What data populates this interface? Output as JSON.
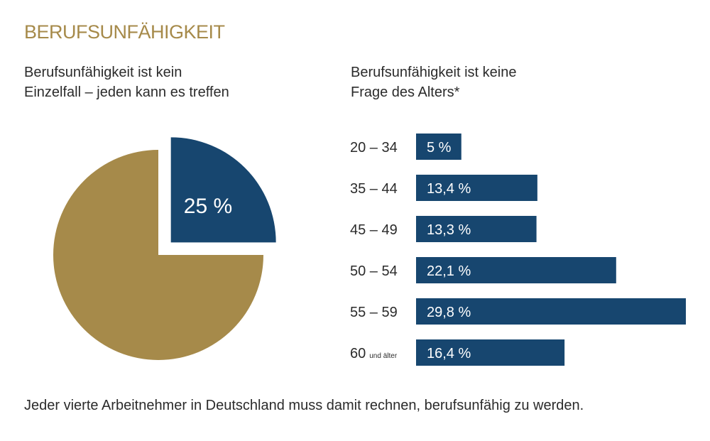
{
  "colors": {
    "gold": "#a68a4a",
    "navy": "#17466f",
    "text": "#2b2b2b"
  },
  "header": {
    "title": "BERUFSUNFÄHIGKEIT"
  },
  "footer": {
    "text": "Jeder vierte Arbeitnehmer in Deutschland muss damit rechnen, berufsunfähig zu werden."
  },
  "chart_data": [
    {
      "type": "pie",
      "title": "Berufsunfähigkeit ist kein Einzelfall – jeden kann es treffen",
      "title_lines": [
        "Berufsunfähigkeit ist kein",
        "Einzelfall – jeden kann es treffen"
      ],
      "slices": [
        {
          "name": "berufsunfähig",
          "value": 25,
          "label": "25 %",
          "color": "#17466f",
          "exploded": true
        },
        {
          "name": "rest",
          "value": 75,
          "label": "",
          "color": "#a68a4a",
          "exploded": false
        }
      ]
    },
    {
      "type": "bar",
      "orientation": "horizontal",
      "title": "Berufsunfähigkeit ist keine Frage des Alters*",
      "title_lines": [
        "Berufsunfähigkeit ist keine",
        "Frage des Alters*"
      ],
      "categories": [
        "20 – 34",
        "35 – 44",
        "45 – 49",
        "50 – 54",
        "55 – 59",
        "60"
      ],
      "category_suffix": [
        "",
        "",
        "",
        "",
        "",
        "und älter"
      ],
      "values": [
        5,
        13.4,
        13.3,
        22.1,
        29.8,
        16.4
      ],
      "labels": [
        "5 %",
        "13,4 %",
        "13,3 %",
        "22,1 %",
        "29,8 %",
        "16,4 %"
      ],
      "xlim": [
        0,
        29.8
      ],
      "color": "#17466f"
    }
  ]
}
